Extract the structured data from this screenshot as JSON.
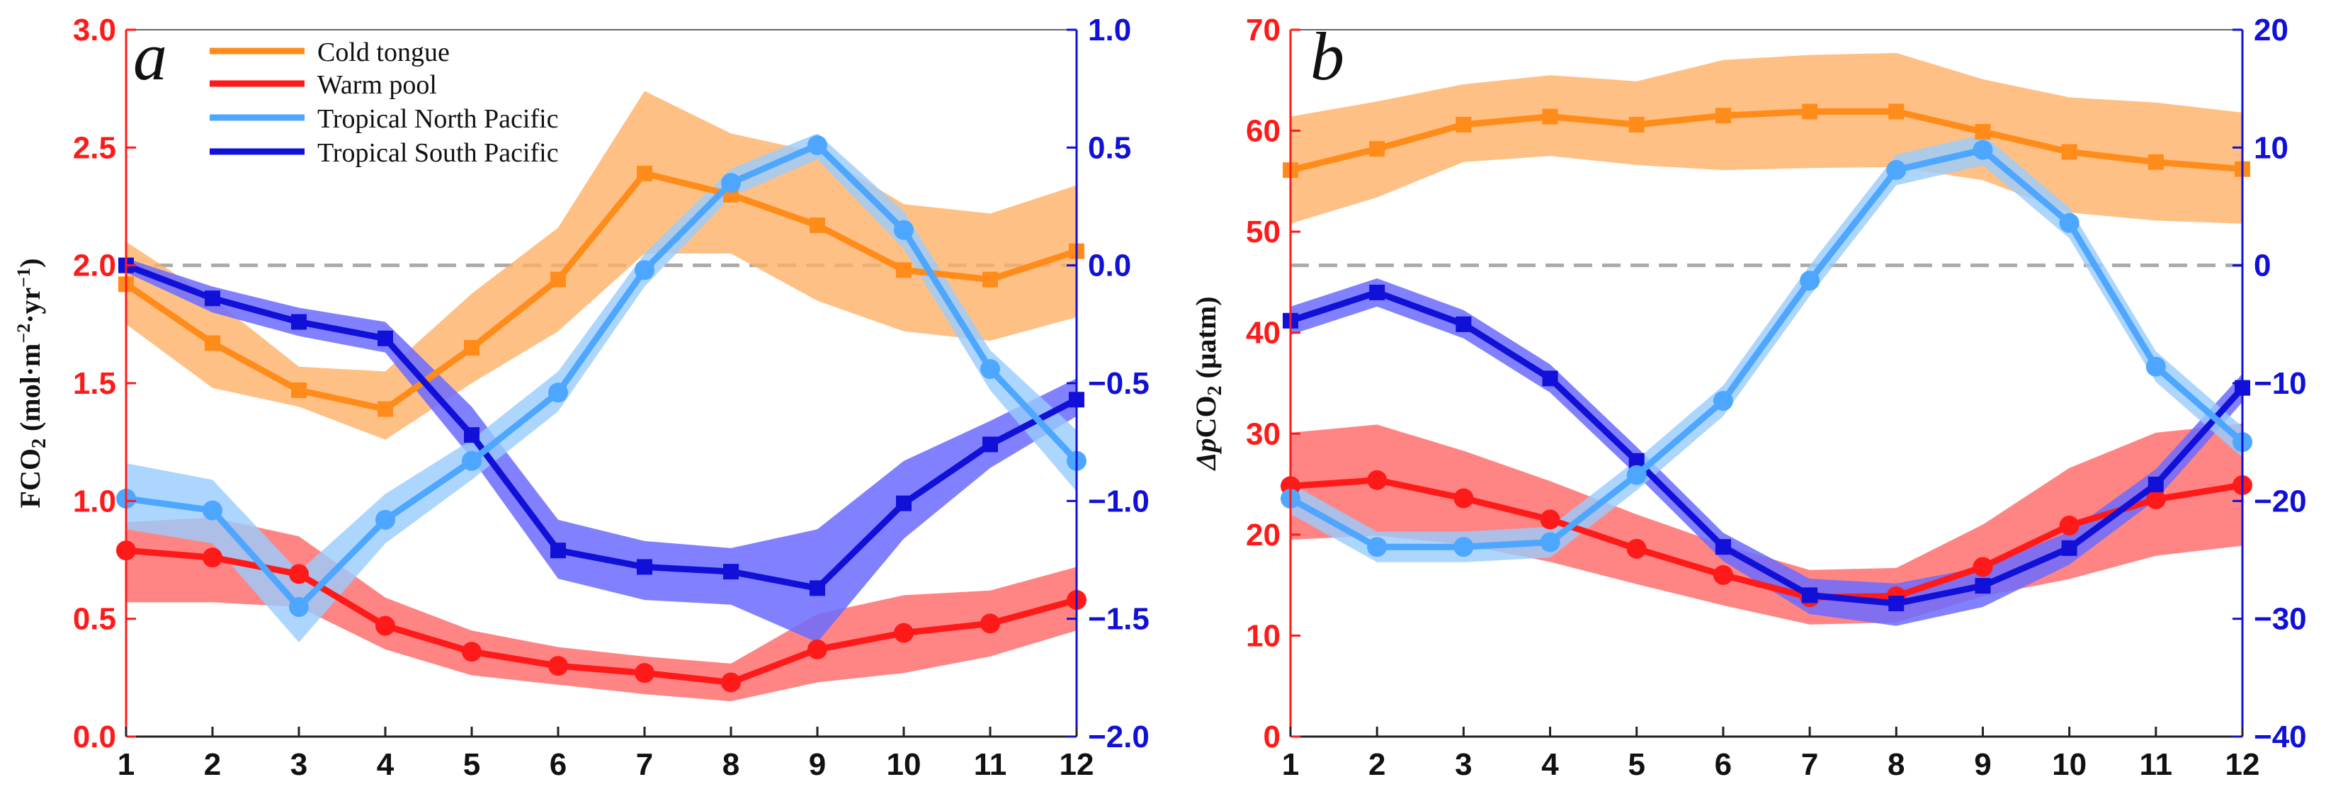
{
  "colors": {
    "cold_tongue": "#ff8c1a",
    "cold_tongue_band": "#ffb066",
    "warm_pool": "#ff1a1a",
    "warm_pool_band": "#ff6666",
    "tnp": "#4da6ff",
    "tnp_band": "#99ccff",
    "tsp": "#1010d8",
    "tsp_band": "#6b6bff",
    "left_axis": "#ff1a1a",
    "right_axis": "#1010d8",
    "zero_line": "#aaaaaa"
  },
  "legend": {
    "cold_tongue": "Cold tongue",
    "warm_pool": "Warm pool",
    "tnp": "Tropical North Pacific",
    "tsp": "Tropical South Pacific"
  },
  "chart_data": [
    {
      "type": "line",
      "panel_label": "a",
      "title": "",
      "xlabel": "",
      "ylabel": "FCO",
      "ylabel_sub": "2",
      "ylabel_units": "(mol·m",
      "ylabel_exp1": "−2",
      "ylabel_mid": "·yr",
      "ylabel_exp2": "−1",
      "ylabel_close": ")",
      "x": [
        1,
        2,
        3,
        4,
        5,
        6,
        7,
        8,
        9,
        10,
        11,
        12
      ],
      "xticks": [
        "1",
        "2",
        "3",
        "4",
        "5",
        "6",
        "7",
        "8",
        "9",
        "10",
        "11",
        "12"
      ],
      "left_axis": {
        "range": [
          0,
          3
        ],
        "ticks": [
          "0.0",
          "0.5",
          "1.0",
          "1.5",
          "2.0",
          "2.5",
          "3.0"
        ],
        "tick_values": [
          0,
          0.5,
          1,
          1.5,
          2,
          2.5,
          3
        ]
      },
      "right_axis": {
        "range": [
          -2,
          1
        ],
        "ticks": [
          "−2.0",
          "−1.5",
          "−1.0",
          "−0.5",
          "0.0",
          "0.5",
          "1.0"
        ],
        "tick_values": [
          -2,
          -1.5,
          -1,
          -0.5,
          0,
          0.5,
          1
        ]
      },
      "zero_line": {
        "axis": "right",
        "value": 0
      },
      "series": [
        {
          "name": "Cold tongue",
          "key": "cold_tongue",
          "axis": "left",
          "marker": "square",
          "values": [
            1.92,
            1.67,
            1.47,
            1.39,
            1.65,
            1.94,
            2.39,
            2.3,
            2.17,
            1.98,
            1.94,
            2.06
          ],
          "lower": [
            1.75,
            1.48,
            1.4,
            1.26,
            1.5,
            1.72,
            2.05,
            2.05,
            1.85,
            1.72,
            1.68,
            1.78
          ],
          "upper": [
            2.1,
            1.86,
            1.57,
            1.55,
            1.88,
            2.16,
            2.74,
            2.56,
            2.48,
            2.26,
            2.22,
            2.34
          ]
        },
        {
          "name": "Warm pool",
          "key": "warm_pool",
          "axis": "left",
          "marker": "circle",
          "values": [
            0.79,
            0.76,
            0.69,
            0.47,
            0.36,
            0.3,
            0.27,
            0.23,
            0.37,
            0.44,
            0.48,
            0.58
          ],
          "lower": [
            0.57,
            0.57,
            0.55,
            0.37,
            0.26,
            0.22,
            0.18,
            0.15,
            0.23,
            0.27,
            0.34,
            0.45
          ],
          "upper": [
            0.91,
            0.93,
            0.85,
            0.59,
            0.45,
            0.38,
            0.34,
            0.31,
            0.52,
            0.6,
            0.62,
            0.72
          ]
        },
        {
          "name": "Tropical North Pacific",
          "key": "tnp",
          "axis": "right",
          "marker": "circle",
          "values": [
            -0.99,
            -1.04,
            -1.45,
            -1.08,
            -0.83,
            -0.54,
            -0.02,
            0.35,
            0.51,
            0.15,
            -0.44,
            -0.83
          ],
          "lower": [
            -1.12,
            -1.18,
            -1.6,
            -1.18,
            -0.91,
            -0.62,
            -0.09,
            0.29,
            0.45,
            0.07,
            -0.53,
            -0.96
          ],
          "upper": [
            -0.84,
            -0.91,
            -1.3,
            -0.97,
            -0.74,
            -0.45,
            0.05,
            0.41,
            0.56,
            0.23,
            -0.36,
            -0.7
          ]
        },
        {
          "name": "Tropical South Pacific",
          "key": "tsp",
          "axis": "right",
          "marker": "square",
          "values": [
            0.0,
            -0.14,
            -0.24,
            -0.31,
            -0.72,
            -1.21,
            -1.28,
            -1.3,
            -1.37,
            -1.01,
            -0.76,
            -0.57
          ],
          "lower": [
            -0.03,
            -0.2,
            -0.3,
            -0.37,
            -0.82,
            -1.33,
            -1.42,
            -1.44,
            -1.6,
            -1.16,
            -0.86,
            -0.64
          ],
          "upper": [
            0.03,
            -0.09,
            -0.18,
            -0.24,
            -0.6,
            -1.08,
            -1.17,
            -1.2,
            -1.12,
            -0.83,
            -0.66,
            -0.48
          ]
        }
      ]
    },
    {
      "type": "line",
      "panel_label": "b",
      "title": "",
      "xlabel": "",
      "ylabel_pre": "Δp",
      "ylabel": "CO",
      "ylabel_sub": "2",
      "ylabel_units": " (μatm)",
      "x": [
        1,
        2,
        3,
        4,
        5,
        6,
        7,
        8,
        9,
        10,
        11,
        12
      ],
      "xticks": [
        "1",
        "2",
        "3",
        "4",
        "5",
        "6",
        "7",
        "8",
        "9",
        "10",
        "11",
        "12"
      ],
      "left_axis": {
        "range": [
          0,
          70
        ],
        "ticks": [
          "0",
          "10",
          "20",
          "30",
          "40",
          "50",
          "60",
          "70"
        ],
        "tick_values": [
          0,
          10,
          20,
          30,
          40,
          50,
          60,
          70
        ]
      },
      "right_axis": {
        "range": [
          -40,
          20
        ],
        "ticks": [
          "−40",
          "−30",
          "−20",
          "−10",
          "0",
          "10",
          "20"
        ],
        "tick_values": [
          -40,
          -30,
          -20,
          -10,
          0,
          10,
          20
        ]
      },
      "zero_line": {
        "axis": "right",
        "value": 0
      },
      "series": [
        {
          "name": "Cold tongue",
          "key": "cold_tongue",
          "axis": "left",
          "marker": "square",
          "values": [
            56.1,
            58.2,
            60.6,
            61.4,
            60.6,
            61.5,
            61.9,
            61.9,
            59.9,
            57.9,
            56.9,
            56.2
          ],
          "lower": [
            50.8,
            53.4,
            56.9,
            57.5,
            56.6,
            56.1,
            56.3,
            56.4,
            55.1,
            51.9,
            51.1,
            50.8
          ],
          "upper": [
            61.4,
            62.9,
            64.6,
            65.5,
            64.9,
            67.0,
            67.5,
            67.7,
            65.1,
            63.3,
            62.8,
            61.8
          ]
        },
        {
          "name": "Warm pool",
          "key": "warm_pool",
          "axis": "left",
          "marker": "circle",
          "values": [
            24.8,
            25.4,
            23.6,
            21.5,
            18.6,
            16.0,
            13.8,
            13.9,
            16.8,
            20.9,
            23.5,
            24.9
          ],
          "lower": [
            19.5,
            19.9,
            19.0,
            17.3,
            15.1,
            13.0,
            11.1,
            11.3,
            13.9,
            15.6,
            17.9,
            18.9
          ],
          "upper": [
            30.1,
            30.9,
            28.3,
            25.3,
            22.0,
            19.0,
            16.5,
            16.7,
            21.0,
            26.6,
            30.1,
            31.0
          ]
        },
        {
          "name": "Tropical North Pacific",
          "key": "tnp",
          "axis": "right",
          "marker": "circle",
          "values": [
            -19.8,
            -23.9,
            -23.9,
            -23.5,
            -17.8,
            -11.5,
            -1.3,
            8.1,
            9.8,
            3.6,
            -8.6,
            -15.0
          ],
          "lower": [
            -21.1,
            -25.2,
            -25.2,
            -24.8,
            -19.1,
            -12.8,
            -2.6,
            6.8,
            8.5,
            2.3,
            -9.9,
            -16.3
          ],
          "upper": [
            -18.5,
            -22.6,
            -22.6,
            -22.2,
            -16.5,
            -10.2,
            0.0,
            9.4,
            11.1,
            4.9,
            -7.3,
            -13.7
          ]
        },
        {
          "name": "Tropical South Pacific",
          "key": "tnp_unused_guard",
          "axis": "right",
          "marker": "square",
          "values": [
            -4.7,
            -2.3,
            -5.0,
            -9.6,
            -16.6,
            -23.9,
            -28.0,
            -28.7,
            -27.2,
            -24.0,
            -18.6,
            -10.4
          ],
          "lower": [
            -5.9,
            -3.5,
            -6.2,
            -10.8,
            -17.8,
            -25.1,
            -29.6,
            -30.6,
            -29.0,
            -25.4,
            -19.9,
            -11.6
          ],
          "upper": [
            -3.5,
            -1.1,
            -3.8,
            -8.4,
            -15.4,
            -22.7,
            -26.6,
            -27.0,
            -25.6,
            -22.6,
            -17.3,
            -9.2
          ]
        }
      ]
    }
  ]
}
